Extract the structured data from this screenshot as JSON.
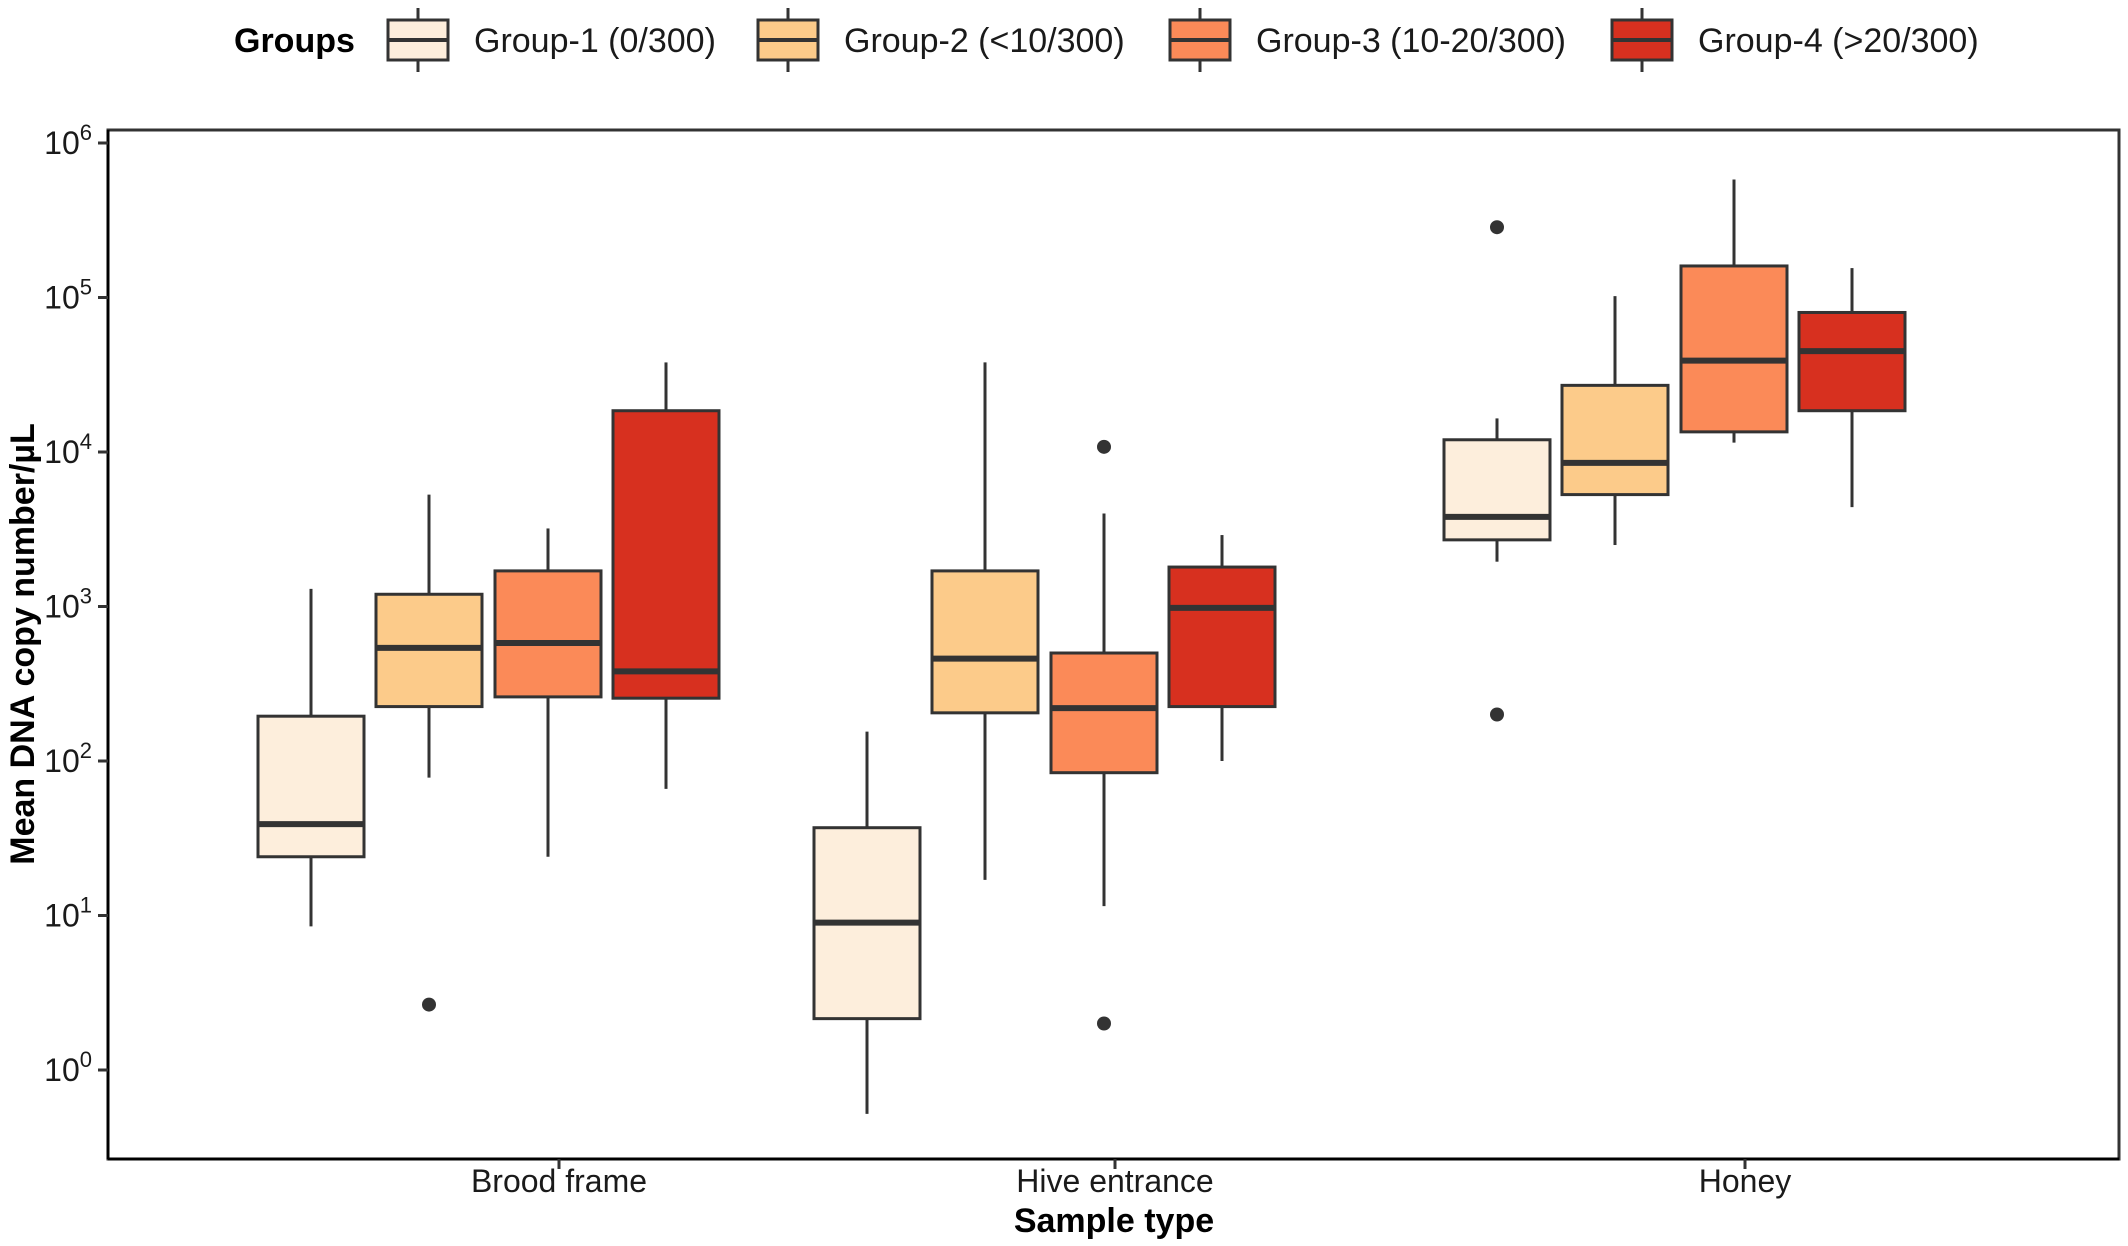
{
  "chart_data": {
    "type": "box",
    "title": "",
    "xlabel": "Sample type",
    "ylabel": "Mean DNA copy number/µL",
    "yscale": "log10",
    "ylim": [
      0.3,
      1000000
    ],
    "y_tick_values": [
      1,
      10,
      100,
      1000,
      10000,
      100000,
      1000000
    ],
    "y_tick_labels": [
      {
        "base": "10",
        "exp": "0"
      },
      {
        "base": "10",
        "exp": "1"
      },
      {
        "base": "10",
        "exp": "2"
      },
      {
        "base": "10",
        "exp": "3"
      },
      {
        "base": "10",
        "exp": "4"
      },
      {
        "base": "10",
        "exp": "5"
      },
      {
        "base": "10",
        "exp": "6"
      }
    ],
    "grid": false,
    "legend": {
      "title": "Groups",
      "position": "top",
      "entries": [
        "Group-1 (0/300)",
        "Group-2 (<10/300)",
        "Group-3 (10-20/300)",
        "Group-4 (>20/300)"
      ]
    },
    "categories": [
      "Brood frame",
      "Hive entrance",
      "Honey"
    ],
    "series": [
      {
        "name": "Group-1 (0/300)",
        "color": "#fdeedc",
        "boxes": [
          {
            "whisker_low": 8.5,
            "q1": 24,
            "median": 39,
            "q3": 195,
            "whisker_high": 1300,
            "outliers": []
          },
          {
            "whisker_low": 0.52,
            "q1": 2.15,
            "median": 9.0,
            "q3": 37,
            "whisker_high": 155,
            "outliers": []
          },
          {
            "whisker_low": 1950,
            "q1": 2700,
            "median": 3800,
            "q3": 12000,
            "whisker_high": 16500,
            "outliers": [
              285000,
              200
            ]
          }
        ]
      },
      {
        "name": "Group-2 (<10/300)",
        "color": "#fccb8a",
        "boxes": [
          {
            "whisker_low": 78,
            "q1": 225,
            "median": 540,
            "q3": 1200,
            "whisker_high": 5300,
            "outliers": [
              2.65
            ]
          },
          {
            "whisker_low": 17,
            "q1": 205,
            "median": 460,
            "q3": 1700,
            "whisker_high": 38000,
            "outliers": []
          },
          {
            "whisker_low": 2500,
            "q1": 5300,
            "median": 8500,
            "q3": 27000,
            "whisker_high": 102000,
            "outliers": []
          }
        ]
      },
      {
        "name": "Group-3 (10-20/300)",
        "color": "#fb8a58",
        "boxes": [
          {
            "whisker_low": 24,
            "q1": 260,
            "median": 580,
            "q3": 1700,
            "whisker_high": 3200,
            "outliers": []
          },
          {
            "whisker_low": 11.5,
            "q1": 84,
            "median": 220,
            "q3": 500,
            "whisker_high": 4000,
            "outliers": [
              10800,
              2.0
            ]
          },
          {
            "whisker_low": 11500,
            "q1": 13500,
            "median": 39000,
            "q3": 160000,
            "whisker_high": 580000,
            "outliers": []
          }
        ]
      },
      {
        "name": "Group-4 (>20/300)",
        "color": "#d7301f",
        "boxes": [
          {
            "whisker_low": 66,
            "q1": 255,
            "median": 380,
            "q3": 18500,
            "whisker_high": 38000,
            "outliers": []
          },
          {
            "whisker_low": 100,
            "q1": 225,
            "median": 980,
            "q3": 1800,
            "whisker_high": 2900,
            "outliers": []
          },
          {
            "whisker_low": 4400,
            "q1": 18500,
            "median": 45000,
            "q3": 80000,
            "whisker_high": 155000,
            "outliers": []
          }
        ]
      }
    ]
  }
}
